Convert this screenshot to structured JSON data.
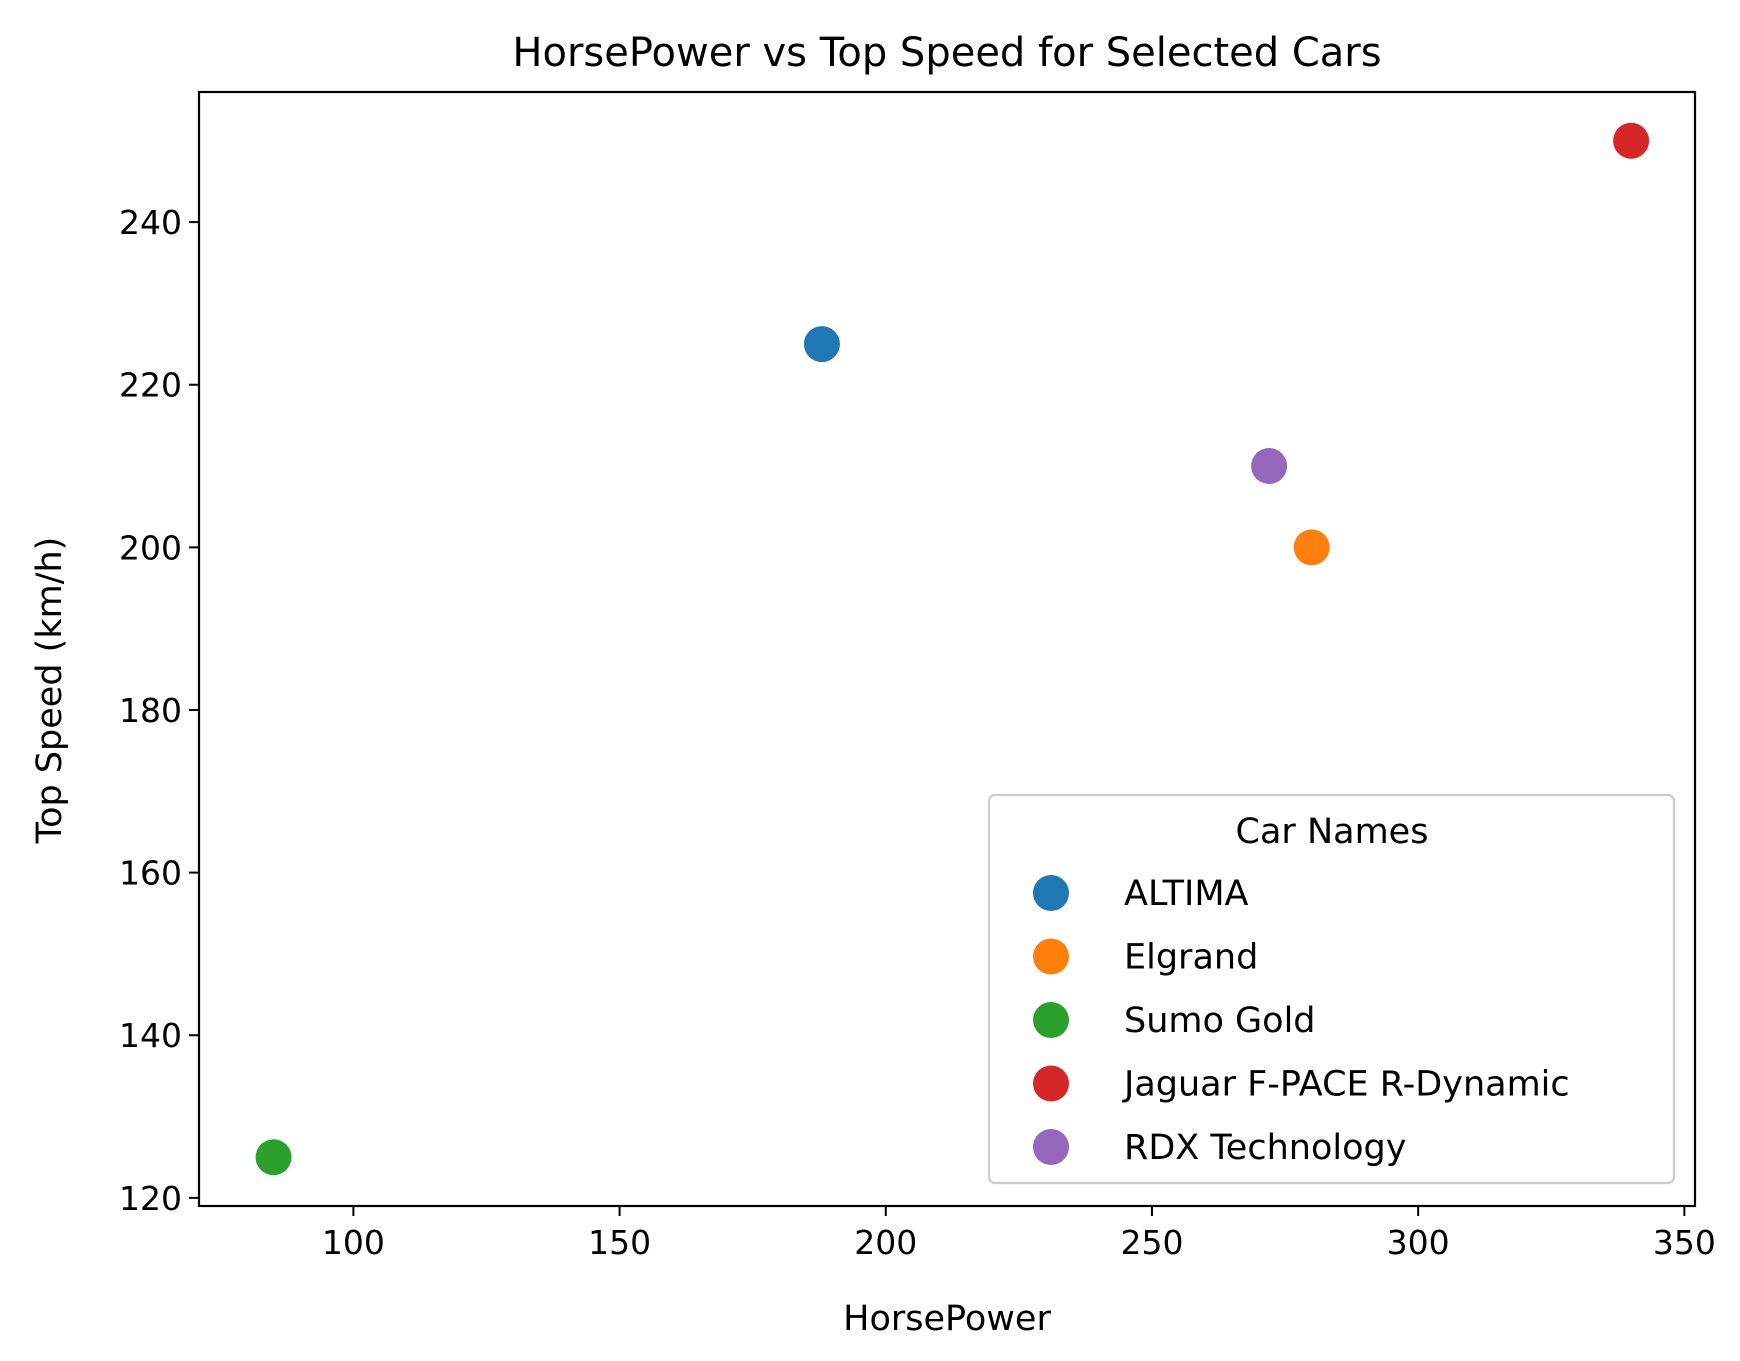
{
  "chart_data": {
    "type": "scatter",
    "title": "HorsePower vs Top Speed for Selected Cars",
    "xlabel": "HorsePower",
    "ylabel": "Top Speed (km/h)",
    "xlim": [
      71,
      352
    ],
    "ylim": [
      119,
      256
    ],
    "xticks": [
      100,
      150,
      200,
      250,
      300,
      350
    ],
    "yticks": [
      120,
      140,
      160,
      180,
      200,
      220,
      240
    ],
    "grid": false,
    "legend": {
      "title": "Car Names",
      "placement": "lower right"
    },
    "series": [
      {
        "name": "ALTIMA",
        "color": "#1f77b4",
        "x": 188,
        "y": 225
      },
      {
        "name": "Elgrand",
        "color": "#ff7f0e",
        "x": 280,
        "y": 200
      },
      {
        "name": "Sumo Gold",
        "color": "#2ca02c",
        "x": 85,
        "y": 125
      },
      {
        "name": "Jaguar F-PACE R-Dynamic",
        "color": "#d62728",
        "x": 340,
        "y": 250
      },
      {
        "name": "RDX Technology",
        "color": "#9467bd",
        "x": 272,
        "y": 210
      }
    ]
  }
}
